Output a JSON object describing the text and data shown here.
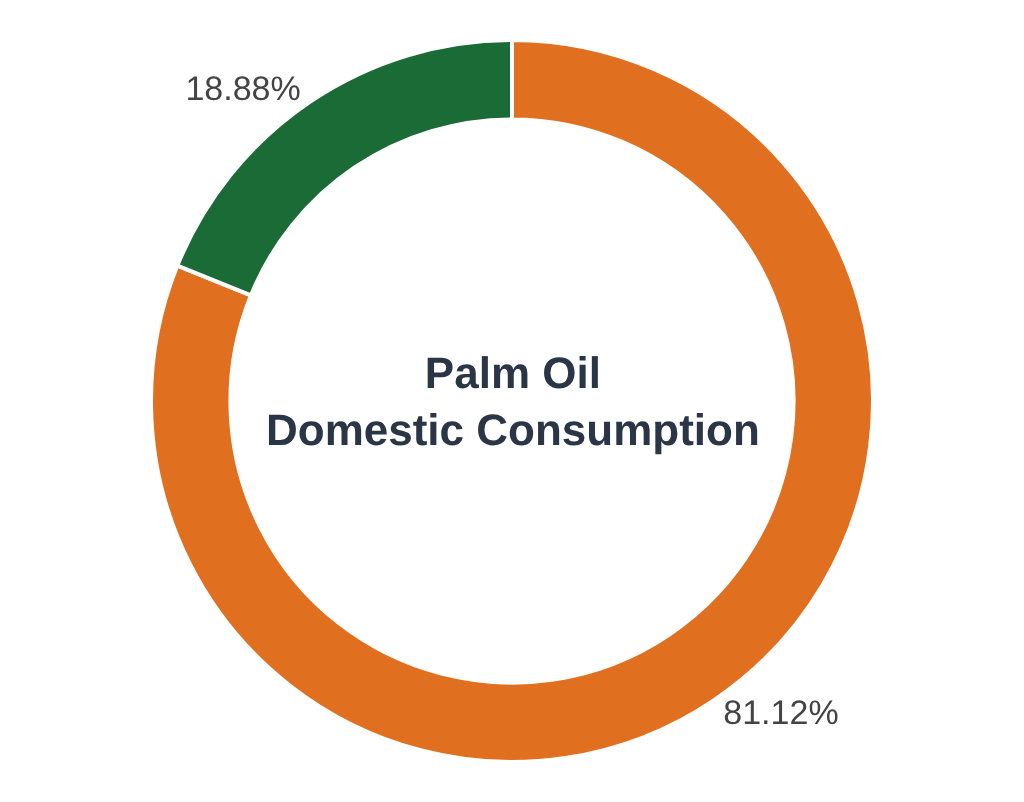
{
  "chart_data": {
    "type": "donut",
    "title": "Palm Oil Domestic Consumption",
    "categories": [
      null,
      null
    ],
    "values": [
      81.12,
      18.88
    ],
    "value_labels": [
      "81.12%",
      "18.88%"
    ],
    "colors": [
      "#e07020",
      "#1a6b35"
    ],
    "legend": false
  }
}
